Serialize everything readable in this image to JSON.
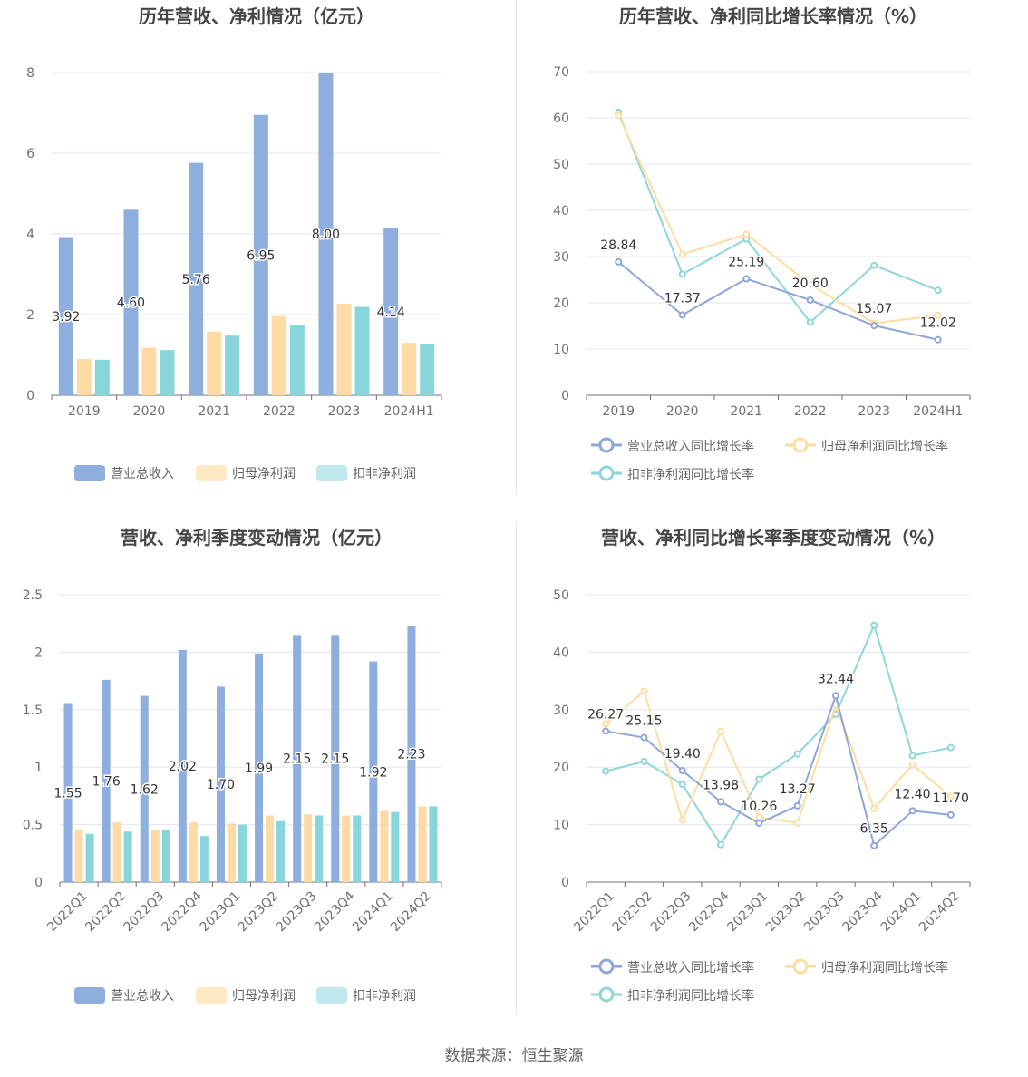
{
  "colors": {
    "revenue": "#8eaede",
    "net_profit": "#fedba4",
    "deducted_profit": "#88d6dc",
    "revenue_line": "#8ea6d8",
    "net_line": "#fedda0",
    "deducted_line": "#8fd6d8"
  },
  "footer": {
    "source": "数据来源：恒生聚源"
  },
  "chart_data": [
    {
      "type": "bar",
      "title": "历年营收、净利情况（亿元）",
      "categories": [
        "2019",
        "2020",
        "2021",
        "2022",
        "2023",
        "2024H1"
      ],
      "ylim": [
        0,
        8
      ],
      "yticks": [
        0,
        2,
        4,
        6,
        8
      ],
      "ytick_labels": [
        "0",
        "2",
        "4",
        "6",
        "8"
      ],
      "series": [
        {
          "name": "营业总收入",
          "values": [
            3.92,
            4.6,
            5.76,
            6.95,
            8.0,
            4.14
          ],
          "labels": [
            "3.92",
            "4.60",
            "5.76",
            "6.95",
            "8.00",
            "4.14"
          ]
        },
        {
          "name": "归母净利润",
          "values": [
            0.9,
            1.18,
            1.58,
            1.96,
            2.27,
            1.3
          ]
        },
        {
          "name": "扣非净利润",
          "values": [
            0.88,
            1.12,
            1.48,
            1.73,
            2.19,
            1.28
          ]
        }
      ],
      "grid": true,
      "legend": "bottom"
    },
    {
      "type": "line",
      "title": "历年营收、净利同比增长率情况（%）",
      "categories": [
        "2019",
        "2020",
        "2021",
        "2022",
        "2023",
        "2024H1"
      ],
      "ylim": [
        0,
        70
      ],
      "yticks": [
        0,
        10,
        20,
        30,
        40,
        50,
        60,
        70
      ],
      "ytick_labels": [
        "0",
        "10",
        "20",
        "30",
        "40",
        "50",
        "60",
        "70"
      ],
      "series": [
        {
          "name": "营业总收入同比增长率",
          "values": [
            28.84,
            17.37,
            25.19,
            20.6,
            15.07,
            12.02
          ],
          "labels": [
            "28.84",
            "17.37",
            "25.19",
            "20.60",
            "15.07",
            "12.02"
          ]
        },
        {
          "name": "归母净利润同比增长率",
          "values": [
            60.5,
            30.5,
            34.8,
            24.0,
            15.6,
            17.3
          ]
        },
        {
          "name": "扣非净利润同比增长率",
          "values": [
            61.2,
            26.2,
            33.8,
            15.8,
            28.1,
            22.7
          ]
        }
      ],
      "grid": true,
      "legend": "bottom"
    },
    {
      "type": "bar",
      "title": "营收、净利季度变动情况（亿元）",
      "categories": [
        "2022Q1",
        "2022Q2",
        "2022Q3",
        "2022Q4",
        "2023Q1",
        "2023Q2",
        "2023Q3",
        "2023Q4",
        "2024Q1",
        "2024Q2"
      ],
      "ylim": [
        0,
        2.5
      ],
      "yticks": [
        0,
        0.5,
        1,
        1.5,
        2,
        2.5
      ],
      "ytick_labels": [
        "0",
        "0.5",
        "1",
        "1.5",
        "2",
        "2.5"
      ],
      "series": [
        {
          "name": "营业总收入",
          "values": [
            1.55,
            1.76,
            1.62,
            2.02,
            1.7,
            1.99,
            2.15,
            2.15,
            1.92,
            2.23
          ],
          "labels": [
            "1.55",
            "1.76",
            "1.62",
            "2.02",
            "1.70",
            "1.99",
            "2.15",
            "2.15",
            "1.92",
            "2.23"
          ]
        },
        {
          "name": "归母净利润",
          "values": [
            0.46,
            0.52,
            0.45,
            0.52,
            0.51,
            0.58,
            0.59,
            0.58,
            0.62,
            0.66
          ]
        },
        {
          "name": "扣非净利润",
          "values": [
            0.42,
            0.44,
            0.45,
            0.4,
            0.5,
            0.53,
            0.58,
            0.58,
            0.61,
            0.66
          ]
        }
      ],
      "grid": true,
      "legend": "bottom"
    },
    {
      "type": "line",
      "title": "营收、净利同比增长率季度变动情况（%）",
      "categories": [
        "2022Q1",
        "2022Q2",
        "2022Q3",
        "2022Q4",
        "2023Q1",
        "2023Q2",
        "2023Q3",
        "2023Q4",
        "2024Q1",
        "2024Q2"
      ],
      "ylim": [
        0,
        50
      ],
      "yticks": [
        0,
        10,
        20,
        30,
        40,
        50
      ],
      "ytick_labels": [
        "0",
        "10",
        "20",
        "30",
        "40",
        "50"
      ],
      "series": [
        {
          "name": "营业总收入同比增长率",
          "values": [
            26.27,
            25.15,
            19.4,
            13.98,
            10.26,
            13.27,
            32.44,
            6.35,
            12.4,
            11.7
          ],
          "labels": [
            "26.27",
            "25.15",
            "19.40",
            "13.98",
            "10.26",
            "13.27",
            "32.44",
            "6.35",
            "12.40",
            "11.70"
          ]
        },
        {
          "name": "归母净利润同比增长率",
          "values": [
            27.5,
            33.2,
            10.8,
            26.2,
            11.3,
            10.3,
            30.8,
            12.8,
            20.4,
            14.9
          ]
        },
        {
          "name": "扣非净利润同比增长率",
          "values": [
            19.3,
            21.0,
            17.0,
            6.5,
            17.9,
            22.3,
            29.2,
            44.7,
            22.0,
            23.4
          ]
        }
      ],
      "grid": true,
      "legend": "bottom"
    }
  ]
}
